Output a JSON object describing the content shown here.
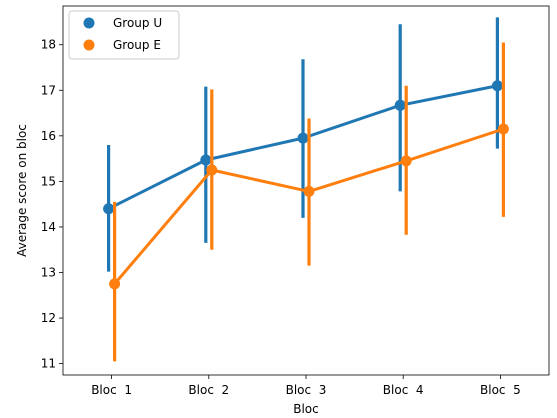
{
  "chart_data": {
    "type": "line",
    "title": "",
    "xlabel": "Bloc",
    "ylabel": "Average score on bloc",
    "categories": [
      "Bloc  1",
      "Bloc  2",
      "Bloc  3",
      "Bloc  4",
      "Bloc  5"
    ],
    "ylim": [
      10.75,
      18.85
    ],
    "yticks": [
      11,
      12,
      13,
      14,
      15,
      16,
      17,
      18
    ],
    "legend_position": "top-left",
    "grid": false,
    "series": [
      {
        "name": "Group U",
        "color": "#1f77b4",
        "values": [
          14.4,
          15.47,
          15.95,
          16.67,
          17.1
        ],
        "err_low": [
          13.02,
          13.65,
          14.2,
          14.78,
          15.72
        ],
        "err_high": [
          15.8,
          17.08,
          17.68,
          18.45,
          18.6
        ]
      },
      {
        "name": "Group E",
        "color": "#ff7f0e",
        "values": [
          12.75,
          15.25,
          14.78,
          15.45,
          16.15
        ],
        "err_low": [
          11.05,
          13.5,
          13.15,
          13.83,
          14.22
        ],
        "err_high": [
          14.55,
          17.02,
          16.38,
          17.1,
          18.05
        ]
      }
    ]
  }
}
